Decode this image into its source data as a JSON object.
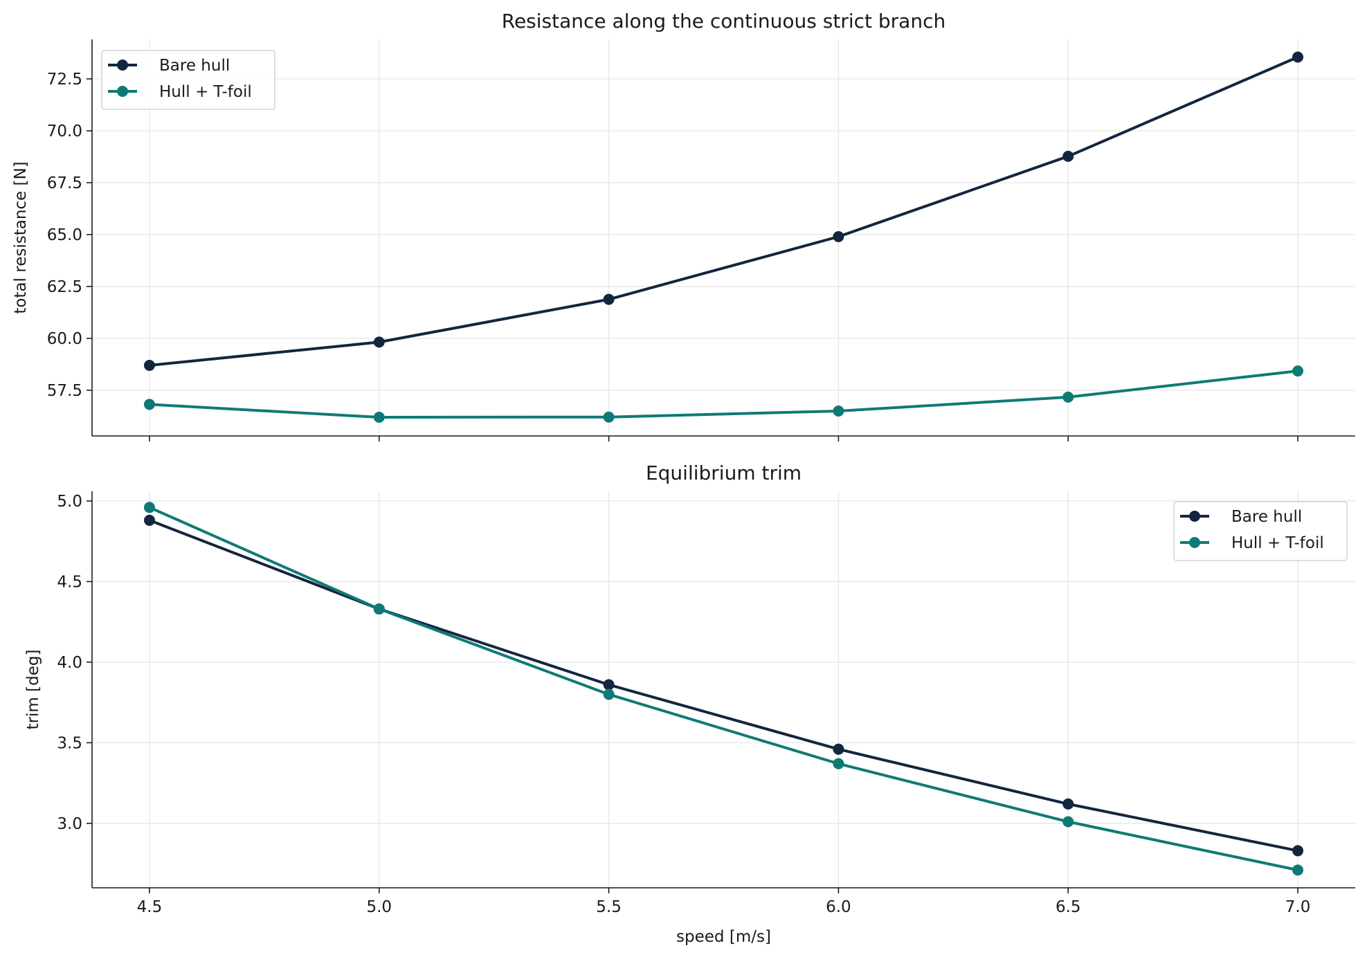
{
  "colors": {
    "bare_hull": "#13263f",
    "hull_tfoil": "#0f7a75",
    "grid": "#e6e6e6",
    "axis": "#1a1a1a"
  },
  "chart_data": [
    {
      "type": "line",
      "title": "Resistance along the continuous strict branch",
      "xlabel": "",
      "ylabel": "total resistance [N]",
      "x": [
        4.5,
        5.0,
        5.5,
        6.0,
        6.5,
        7.0
      ],
      "xticks": [
        "4.5",
        "5.0",
        "5.5",
        "6.0",
        "6.5",
        "7.0"
      ],
      "show_xtick_labels": false,
      "xlim": [
        4.375,
        7.125
      ],
      "ylim": [
        55.3,
        74.4
      ],
      "yticks": [
        "57.5",
        "60.0",
        "62.5",
        "65.0",
        "67.5",
        "70.0",
        "72.5"
      ],
      "grid": true,
      "legend_position": "upper-left",
      "series": [
        {
          "name": "Bare hull",
          "color_key": "bare_hull",
          "values": [
            58.7,
            59.82,
            61.88,
            64.9,
            68.77,
            73.55
          ]
        },
        {
          "name": "Hull + T-foil",
          "color_key": "hull_tfoil",
          "values": [
            56.82,
            56.2,
            56.21,
            56.5,
            57.17,
            58.43
          ]
        }
      ]
    },
    {
      "type": "line",
      "title": "Equilibrium trim",
      "xlabel": "speed [m/s]",
      "ylabel": "trim [deg]",
      "x": [
        4.5,
        5.0,
        5.5,
        6.0,
        6.5,
        7.0
      ],
      "xticks": [
        "4.5",
        "5.0",
        "5.5",
        "6.0",
        "6.5",
        "7.0"
      ],
      "show_xtick_labels": true,
      "xlim": [
        4.375,
        7.125
      ],
      "ylim": [
        2.6,
        5.06
      ],
      "yticks": [
        "3.0",
        "3.5",
        "4.0",
        "4.5",
        "5.0"
      ],
      "grid": true,
      "legend_position": "upper-right",
      "series": [
        {
          "name": "Bare hull",
          "color_key": "bare_hull",
          "values": [
            4.88,
            4.33,
            3.86,
            3.46,
            3.12,
            2.83
          ]
        },
        {
          "name": "Hull + T-foil",
          "color_key": "hull_tfoil",
          "values": [
            4.96,
            4.33,
            3.8,
            3.37,
            3.01,
            2.71
          ]
        }
      ]
    }
  ]
}
